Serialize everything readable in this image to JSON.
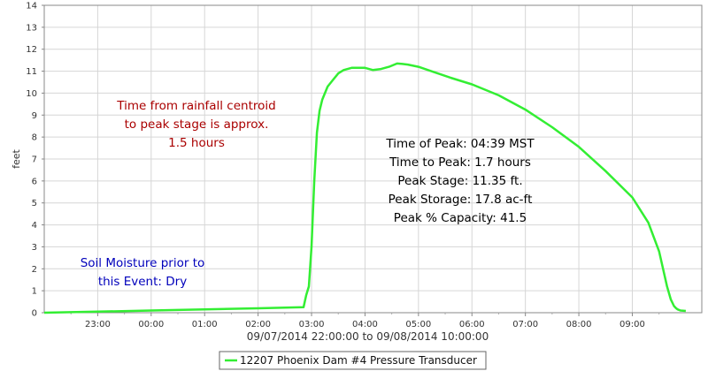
{
  "chart_data": {
    "type": "line",
    "ylabel": "feet",
    "ylim": [
      0,
      14
    ],
    "y_ticks": [
      0,
      1,
      2,
      3,
      4,
      5,
      6,
      7,
      8,
      9,
      10,
      11,
      12,
      13,
      14
    ],
    "x_start_label": "22:00",
    "x_ticks": [
      "23:00",
      "00:00",
      "01:00",
      "02:00",
      "03:00",
      "04:00",
      "05:00",
      "06:00",
      "07:00",
      "08:00",
      "09:00"
    ],
    "xlim_hours": [
      22,
      34.3
    ],
    "x_range_label": "09/07/2014 22:00:00 to 09/08/2014 10:00:00",
    "grid": true,
    "legend_position": "bottom-center",
    "series": [
      {
        "name": "12207 Phoenix Dam #4 Pressure Transducer",
        "color": "#33ee33",
        "x": [
          22.0,
          23.0,
          24.0,
          25.0,
          26.0,
          26.85,
          26.9,
          26.95,
          27.0,
          27.05,
          27.1,
          27.15,
          27.2,
          27.3,
          27.4,
          27.5,
          27.6,
          27.75,
          27.9,
          28.0,
          28.15,
          28.3,
          28.45,
          28.6,
          28.7,
          28.8,
          29.0,
          29.3,
          29.6,
          30.0,
          30.5,
          31.0,
          31.5,
          32.0,
          32.5,
          33.0,
          33.3,
          33.5,
          33.65,
          33.72,
          33.78,
          33.82,
          33.85,
          33.9,
          34.0
        ],
        "y": [
          0.0,
          0.05,
          0.1,
          0.15,
          0.2,
          0.25,
          0.8,
          1.2,
          3.0,
          6.0,
          8.2,
          9.2,
          9.7,
          10.3,
          10.6,
          10.9,
          11.05,
          11.15,
          11.15,
          11.15,
          11.05,
          11.1,
          11.2,
          11.35,
          11.33,
          11.3,
          11.2,
          10.95,
          10.7,
          10.4,
          9.9,
          9.25,
          8.45,
          7.55,
          6.45,
          5.25,
          4.1,
          2.8,
          1.2,
          0.6,
          0.3,
          0.2,
          0.15,
          0.1,
          0.08
        ]
      }
    ],
    "annotations": [
      {
        "lines": [
          "Time from rainfall centroid",
          "to peak stage is approx.",
          "1.5 hours"
        ],
        "color": "#aa0000"
      },
      {
        "lines": [
          "Time of Peak: 04:39 MST",
          "Time to Peak: 1.7 hours",
          "Peak Stage: 11.35 ft.",
          "Peak Storage: 17.8 ac-ft",
          "Peak % Capacity: 41.5"
        ],
        "color": "#000000"
      },
      {
        "lines": [
          "Soil Moisture prior to",
          "this Event: Dry"
        ],
        "color": "#0000bb"
      }
    ]
  }
}
